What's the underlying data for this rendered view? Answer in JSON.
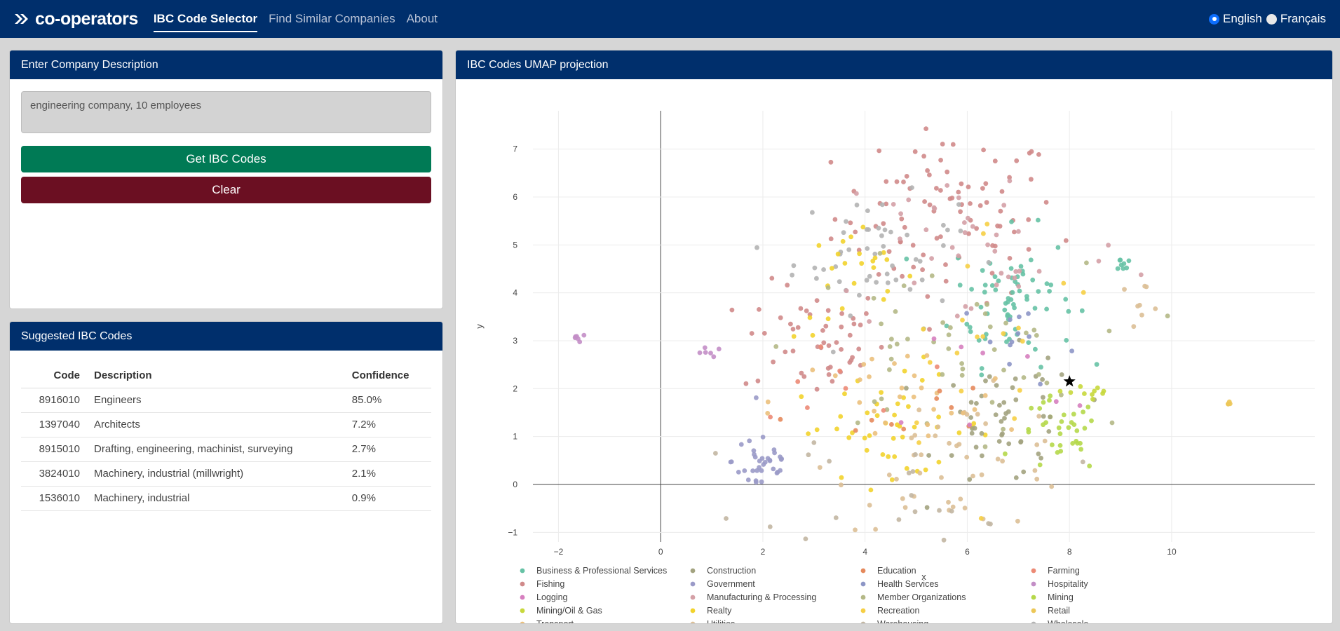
{
  "nav": {
    "brand": "co-operators",
    "links": [
      "IBC Code Selector",
      "Find Similar Companies",
      "About"
    ],
    "active_index": 0,
    "languages": [
      "English",
      "Français"
    ],
    "selected_language": "English"
  },
  "input_card": {
    "title": "Enter Company Description",
    "description_value": "engineering company, 10 employees",
    "get_button": "Get IBC Codes",
    "clear_button": "Clear"
  },
  "results_card": {
    "title": "Suggested IBC Codes",
    "columns": [
      "Code",
      "Description",
      "Confidence"
    ],
    "rows": [
      {
        "code": "8916010",
        "description": "Engineers",
        "confidence": "85.0%"
      },
      {
        "code": "1397040",
        "description": "Architects",
        "confidence": "7.2%"
      },
      {
        "code": "8915010",
        "description": "Drafting, engineering, machinist, surveying",
        "confidence": "2.7%"
      },
      {
        "code": "3824010",
        "description": "Machinery, industrial (millwright)",
        "confidence": "2.1%"
      },
      {
        "code": "1536010",
        "description": "Machinery, industrial",
        "confidence": "0.9%"
      }
    ]
  },
  "plot_card": {
    "title": "IBC Codes UMAP projection"
  },
  "chart_data": {
    "type": "scatter",
    "title": "",
    "xlabel": "x",
    "ylabel": "y",
    "xlim": [
      -2.5,
      12.8
    ],
    "ylim": [
      -1.2,
      7.8
    ],
    "xticks": [
      -2,
      0,
      2,
      4,
      6,
      8,
      10
    ],
    "yticks": [
      -1,
      0,
      1,
      2,
      3,
      4,
      5,
      6,
      7
    ],
    "grid": true,
    "legend_position": "bottom",
    "highlight_point": {
      "x": 8.0,
      "y": 2.15,
      "marker": "star",
      "color": "#000000"
    },
    "series": [
      {
        "name": "Business & Professional Services",
        "color": "#66c2a5"
      },
      {
        "name": "Construction",
        "color": "#a3a380"
      },
      {
        "name": "Education",
        "color": "#e5895c"
      },
      {
        "name": "Farming",
        "color": "#ec8a75"
      },
      {
        "name": "Fishing",
        "color": "#d08a8a"
      },
      {
        "name": "Government",
        "color": "#9a9ac8"
      },
      {
        "name": "Health Services",
        "color": "#8d96c6"
      },
      {
        "name": "Hospitality",
        "color": "#c38ec6"
      },
      {
        "name": "Logging",
        "color": "#d67fbf"
      },
      {
        "name": "Manufacturing & Processing",
        "color": "#d4a0a6"
      },
      {
        "name": "Member Organizations",
        "color": "#b4b886"
      },
      {
        "name": "Mining",
        "color": "#b5d84a"
      },
      {
        "name": "Mining/Oil & Gas",
        "color": "#c8d83c"
      },
      {
        "name": "Realty",
        "color": "#f2d32c"
      },
      {
        "name": "Recreation",
        "color": "#f6cf45"
      },
      {
        "name": "Retail",
        "color": "#ecc758"
      },
      {
        "name": "Transport",
        "color": "#ebc07c"
      },
      {
        "name": "Utilities",
        "color": "#dcbf96"
      },
      {
        "name": "Warehousing",
        "color": "#c2b6a2"
      },
      {
        "name": "Wholesale",
        "color": "#b3b3b3"
      }
    ],
    "clusters": [
      {
        "series": "Fishing",
        "cx": 5.6,
        "cy": 5.6,
        "sx": 1.1,
        "sy": 0.9,
        "n": 90
      },
      {
        "series": "Fishing",
        "cx": 3.0,
        "cy": 3.0,
        "sx": 0.7,
        "sy": 0.6,
        "n": 50
      },
      {
        "series": "Business & Professional Services",
        "cx": 6.9,
        "cy": 3.9,
        "sx": 0.6,
        "sy": 0.7,
        "n": 70
      },
      {
        "series": "Business & Professional Services",
        "cx": 9.0,
        "cy": 4.6,
        "sx": 0.15,
        "sy": 0.1,
        "n": 8
      },
      {
        "series": "Wholesale",
        "cx": 4.2,
        "cy": 4.8,
        "sx": 0.8,
        "sy": 0.6,
        "n": 50
      },
      {
        "series": "Realty",
        "cx": 4.5,
        "cy": 1.2,
        "sx": 1.0,
        "sy": 0.5,
        "n": 45
      },
      {
        "series": "Realty",
        "cx": 3.8,
        "cy": 4.2,
        "sx": 0.6,
        "sy": 0.6,
        "n": 25
      },
      {
        "series": "Government",
        "cx": 2.0,
        "cy": 0.5,
        "sx": 0.3,
        "sy": 0.4,
        "n": 35
      },
      {
        "series": "Hospitality",
        "cx": -1.6,
        "cy": 3.05,
        "sx": 0.1,
        "sy": 0.05,
        "n": 6
      },
      {
        "series": "Hospitality",
        "cx": 0.9,
        "cy": 2.75,
        "sx": 0.15,
        "sy": 0.05,
        "n": 6
      },
      {
        "series": "Mining",
        "cx": 7.8,
        "cy": 1.0,
        "sx": 0.4,
        "sy": 0.4,
        "n": 35
      },
      {
        "series": "Construction",
        "cx": 6.8,
        "cy": 1.3,
        "sx": 0.7,
        "sy": 0.7,
        "n": 50
      },
      {
        "series": "Utilities",
        "cx": 5.8,
        "cy": 0.5,
        "sx": 1.2,
        "sy": 0.7,
        "n": 45
      },
      {
        "series": "Utilities",
        "cx": 9.4,
        "cy": 3.9,
        "sx": 0.25,
        "sy": 0.15,
        "n": 8
      },
      {
        "series": "Member Organizations",
        "cx": 5.5,
        "cy": 2.8,
        "sx": 1.4,
        "sy": 0.9,
        "n": 50
      },
      {
        "series": "Transport",
        "cx": 4.6,
        "cy": 1.7,
        "sx": 1.2,
        "sy": 0.6,
        "n": 30
      },
      {
        "series": "Health Services",
        "cx": 7.0,
        "cy": 3.0,
        "sx": 0.6,
        "sy": 0.5,
        "n": 12
      },
      {
        "series": "Manufacturing & Processing",
        "cx": 6.2,
        "cy": 5.0,
        "sx": 1.5,
        "sy": 1.0,
        "n": 40
      },
      {
        "series": "Recreation",
        "cx": 6.5,
        "cy": 3.0,
        "sx": 1.2,
        "sy": 1.3,
        "n": 20
      },
      {
        "series": "Mining/Oil & Gas",
        "cx": 8.4,
        "cy": 1.9,
        "sx": 0.2,
        "sy": 0.2,
        "n": 10
      },
      {
        "series": "Retail",
        "cx": 11.1,
        "cy": 1.67,
        "sx": 0.05,
        "sy": 0.03,
        "n": 4
      },
      {
        "series": "Education",
        "cx": 4.5,
        "cy": 1.6,
        "sx": 1.0,
        "sy": 0.4,
        "n": 10
      },
      {
        "series": "Farming",
        "cx": 3.5,
        "cy": 2.4,
        "sx": 0.8,
        "sy": 0.6,
        "n": 8
      },
      {
        "series": "Warehousing",
        "cx": 5.0,
        "cy": 0.0,
        "sx": 1.5,
        "sy": 0.6,
        "n": 20
      },
      {
        "series": "Logging",
        "cx": 6.0,
        "cy": 2.0,
        "sx": 1.2,
        "sy": 0.8,
        "n": 8
      }
    ]
  }
}
